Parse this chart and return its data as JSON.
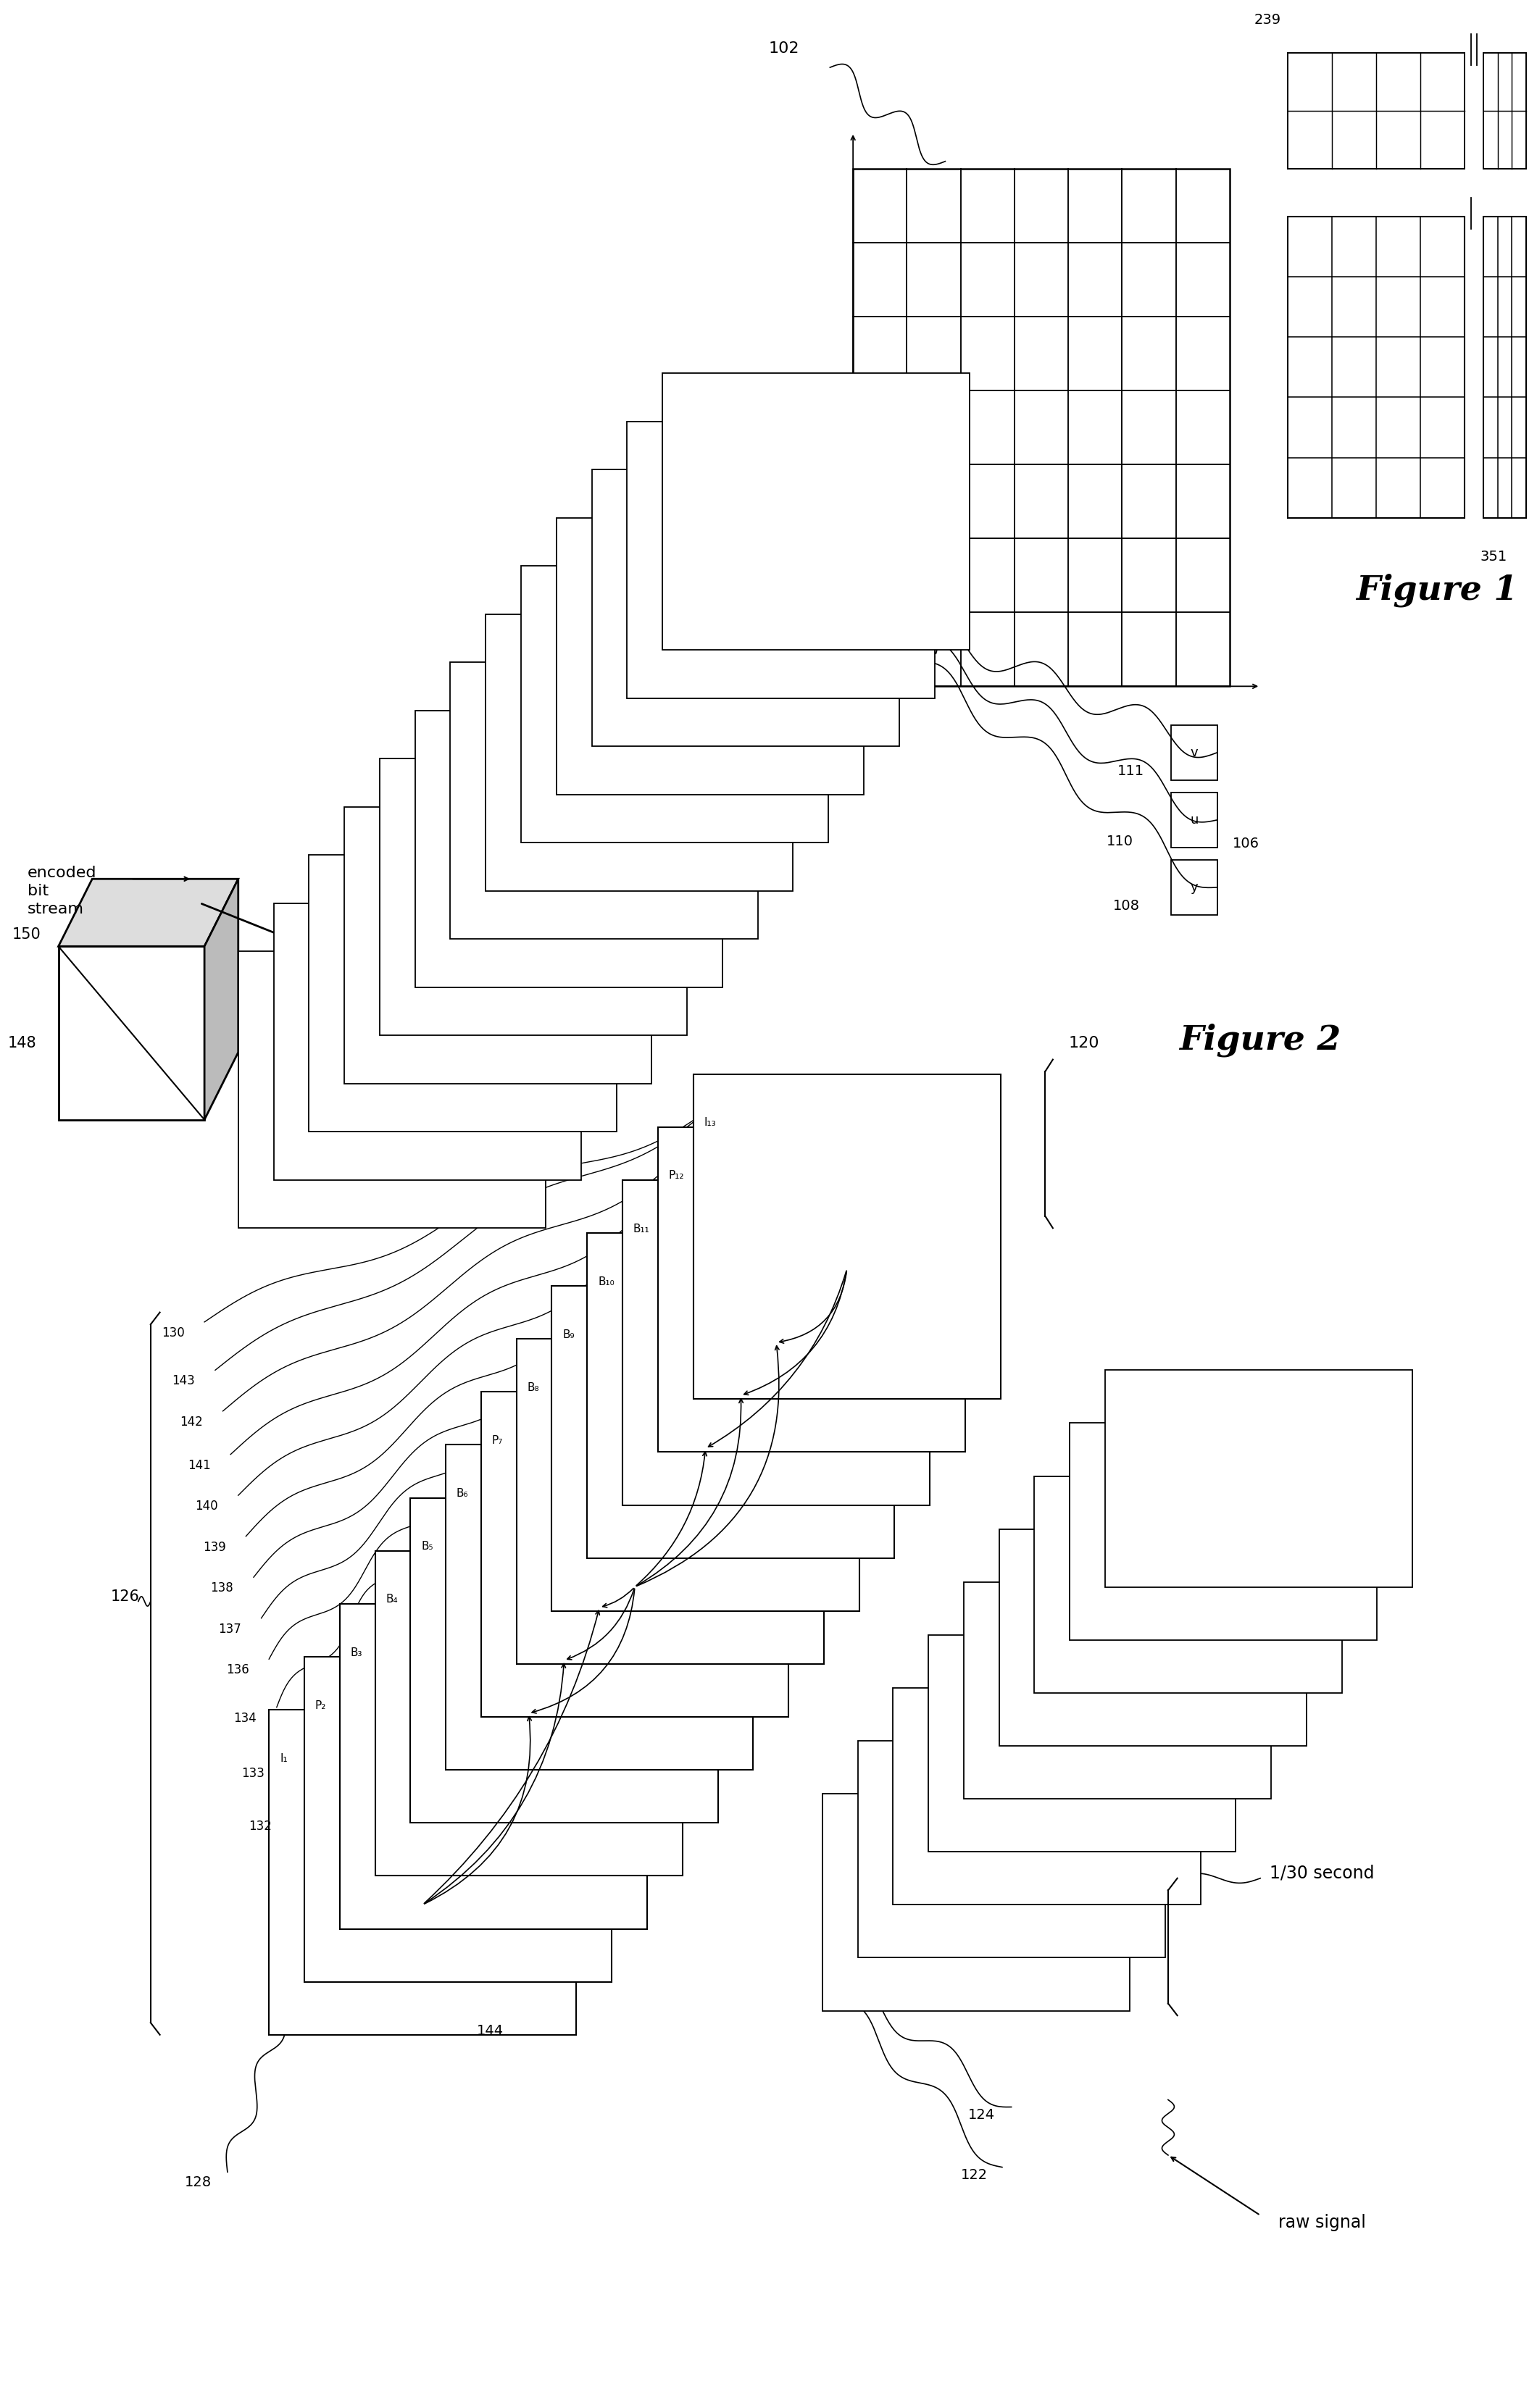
{
  "bg_color": "#ffffff",
  "fig1_label": "Figure 1",
  "fig2_label": "Figure 2",
  "frame_labels": [
    "I₁",
    "P₂",
    "B₃",
    "B₄",
    "B₅",
    "B₆",
    "P₇",
    "B₈",
    "B₉",
    "B₁₀",
    "B₁₁",
    "P₁₂",
    "I₁₃"
  ],
  "ref_numbers": [
    "128",
    "144",
    "132",
    "133",
    "134",
    "136",
    "137",
    "138",
    "139",
    "140",
    "141",
    "142",
    "143"
  ],
  "grid_large_rows": 7,
  "grid_large_cols": 7,
  "grid_small1_rows": 2,
  "grid_small1_cols": 4,
  "grid_small2_rows": 2,
  "grid_small2_cols": 3,
  "grid_med1_rows": 5,
  "grid_med1_cols": 4,
  "grid_med2_rows": 5,
  "grid_med2_cols": 3
}
